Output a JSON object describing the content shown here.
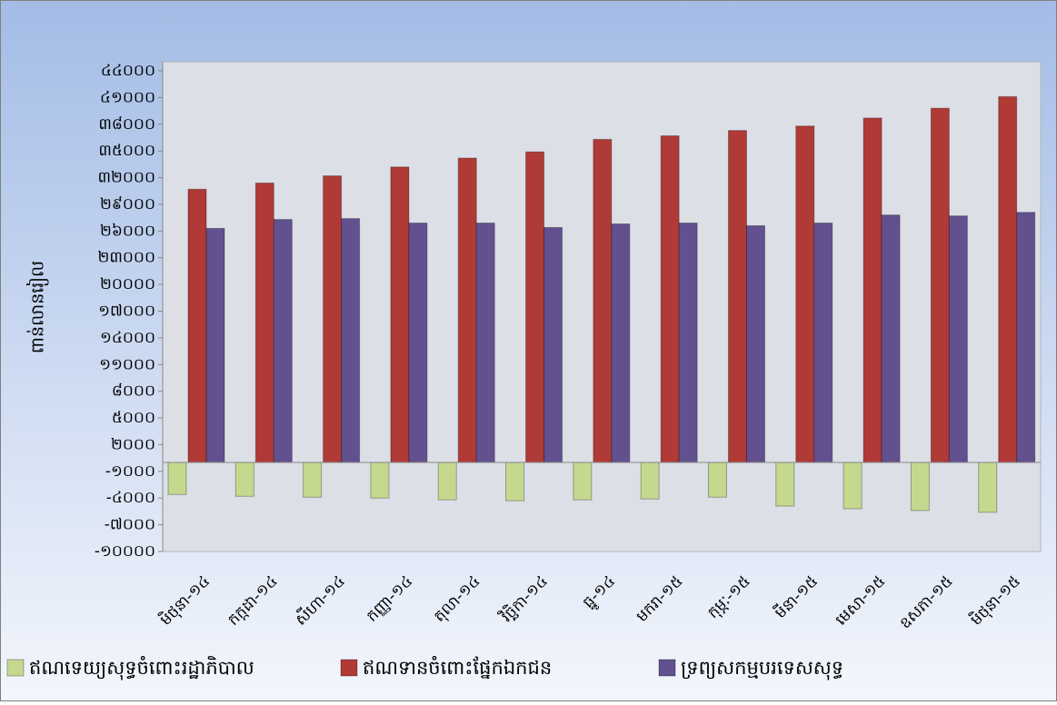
{
  "chart_data": {
    "type": "bar",
    "y_label": "ពាន់លានរៀល",
    "categories": [
      "មិថុនា-១៤",
      "កក្កដា-១៤",
      "សីហា-១៤",
      "កញ្ញា-១៤",
      "តុលា-១៤",
      "វិច្ឆិកា-១៤",
      "ធ្នូ-១៤",
      "មករា-១៥",
      "កុម្ភៈ-១៥",
      "មីនា-១៥",
      "មេសា-១៥",
      "ឧសភា-១៥",
      "មិថុនា-១៥"
    ],
    "series": [
      {
        "name": "ឥណទេយ្យសុទ្ធចំពោះរដ្ឋាភិបាល",
        "color": "#c4d98e",
        "values": [
          -3600,
          -3800,
          -3900,
          -4000,
          -4200,
          -4300,
          -4200,
          -4100,
          -3900,
          -4900,
          -5200,
          -5400,
          -5600
        ]
      },
      {
        "name": "ឥណទានចំពោះផ្នែកឯកជន",
        "color": "#b03a36",
        "values": [
          30700,
          31400,
          32200,
          33200,
          34200,
          34900,
          36300,
          36700,
          37300,
          37800,
          38700,
          39800,
          41100
        ]
      },
      {
        "name": "ទ្រព្យសកម្មបរទេសសុទ្ធ",
        "color": "#62508f",
        "values": [
          26300,
          27300,
          27400,
          26900,
          26900,
          26400,
          26800,
          26900,
          26600,
          26900,
          27800,
          27700,
          28100
        ]
      }
    ],
    "ylim": [
      -10000,
      44000
    ],
    "yticks": [
      {
        "value": -10000,
        "label": "-១០០០០"
      },
      {
        "value": -7000,
        "label": "-៧០០០"
      },
      {
        "value": -4000,
        "label": "-៤០០០"
      },
      {
        "value": -1000,
        "label": "-១០០០"
      },
      {
        "value": 2000,
        "label": "២០០០"
      },
      {
        "value": 5000,
        "label": "៥០០០"
      },
      {
        "value": 8000,
        "label": "៨០០០"
      },
      {
        "value": 11000,
        "label": "១១០០០"
      },
      {
        "value": 14000,
        "label": "១៤០០០"
      },
      {
        "value": 17000,
        "label": "១៧០០០"
      },
      {
        "value": 20000,
        "label": "២០០០០"
      },
      {
        "value": 23000,
        "label": "២៣០០០"
      },
      {
        "value": 26000,
        "label": "២៦០០០"
      },
      {
        "value": 29000,
        "label": "២៩០០០"
      },
      {
        "value": 32000,
        "label": "៣២០០០"
      },
      {
        "value": 35000,
        "label": "៣៥០០០"
      },
      {
        "value": 38000,
        "label": "៣៨០០០"
      },
      {
        "value": 41000,
        "label": "៤១០០០"
      },
      {
        "value": 44000,
        "label": "៤៤០០០"
      }
    ]
  }
}
